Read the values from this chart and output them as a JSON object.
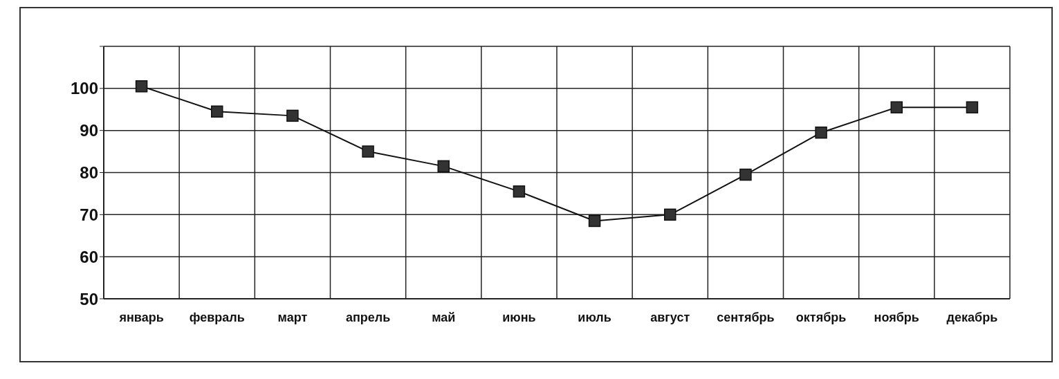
{
  "chart_data": {
    "type": "line",
    "categories": [
      "январь",
      "февраль",
      "март",
      "апрель",
      "май",
      "июнь",
      "июль",
      "август",
      "сентябрь",
      "октябрь",
      "ноябрь",
      "декабрь"
    ],
    "series": [
      {
        "color": "#111111",
        "values": [
          100.5,
          94.5,
          93.5,
          85,
          81.5,
          75.5,
          68.5,
          70,
          79.5,
          89.5,
          95.5,
          95.5
        ]
      }
    ],
    "ylim": [
      50,
      110
    ],
    "yticks": [
      50,
      60,
      70,
      80,
      90,
      100,
      {
        "value": 110,
        "label": null
      }
    ],
    "grid": true,
    "marker": "square",
    "line_style": "solid"
  }
}
